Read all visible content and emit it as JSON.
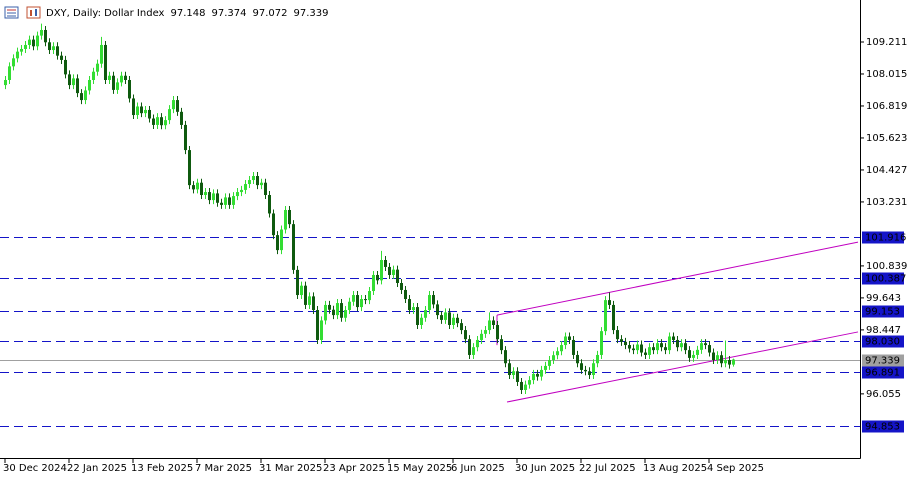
{
  "chart_data": {
    "type": "candlestick",
    "title": "DXY, Daily:  Dollar Index",
    "up_color": "#33dd33",
    "down_color": "#0f5a0f",
    "level_color": "#1414c8",
    "price_color": "#a0a0a0",
    "trend_color": "#c000c0",
    "xlim": [
      -1.25,
      213.75
    ],
    "xticks": [
      {
        "value": 0,
        "label": "30 Dec 2024"
      },
      {
        "value": 16,
        "label": "22 Jan 2025"
      },
      {
        "value": 32,
        "label": "13 Feb 2025"
      },
      {
        "value": 48,
        "label": "7 Mar 2025"
      },
      {
        "value": 64,
        "label": "31 Mar 2025"
      },
      {
        "value": 80,
        "label": "23 Apr 2025"
      },
      {
        "value": 96,
        "label": "15 May 2025"
      },
      {
        "value": 112,
        "label": "6 Jun 2025"
      },
      {
        "value": 128,
        "label": "30 Jun 2025"
      },
      {
        "value": 144,
        "label": "22 Jul 2025"
      },
      {
        "value": 160,
        "label": "13 Aug 2025"
      },
      {
        "value": 176,
        "label": "4 Sep 2025"
      }
    ],
    "ylim": [
      93.657,
      110.781
    ],
    "yticks": [
      109.211,
      108.015,
      106.819,
      105.623,
      104.427,
      103.231,
      100.839,
      99.643,
      98.447,
      96.055
    ],
    "levels": [
      101.916,
      100.387,
      99.153,
      {
        "value": 98.03,
        "label": "98.030"
      },
      96.891,
      94.853
    ],
    "trendlines": [
      {
        "x": [
          123,
          213.25
        ],
        "y": [
          99.0,
          101.73
        ]
      },
      {
        "x": [
          125.5,
          213.25
        ],
        "y": [
          95.75,
          98.37
        ]
      }
    ],
    "open": [
      107.6,
      107.79,
      108.3,
      108.6,
      108.85,
      108.95,
      109.1,
      109.3,
      109.05,
      109.45,
      109.66,
      109.2,
      108.91,
      109.05,
      108.7,
      108.54,
      108.0,
      107.6,
      107.85,
      107.3,
      107.04,
      107.4,
      107.79,
      108.1,
      108.4,
      109.1,
      107.79,
      107.95,
      107.42,
      107.7,
      107.95,
      107.79,
      107.1,
      106.48,
      106.8,
      106.55,
      106.67,
      106.35,
      106.11,
      106.4,
      106.1,
      106.29,
      106.7,
      107.04,
      106.6,
      106.11,
      105.17,
      103.86,
      103.7,
      103.95,
      103.49,
      103.6,
      103.3,
      103.55,
      103.2,
      103.12,
      103.4,
      103.12,
      103.45,
      103.6,
      103.68,
      103.9,
      104.05,
      104.2,
      103.86,
      103.95,
      103.49,
      102.8,
      101.99,
      101.43,
      102.2,
      102.93,
      102.4,
      100.69,
      99.75,
      100.1,
      99.38,
      99.7,
      99.19,
      98.07,
      98.8,
      99.38,
      99.2,
      99.0,
      99.45,
      98.9,
      99.19,
      99.5,
      99.75,
      99.3,
      99.6,
      99.56,
      99.9,
      100.5,
      100.3,
      101.06,
      100.8,
      100.5,
      100.7,
      100.2,
      99.94,
      99.6,
      99.19,
      99.3,
      98.63,
      98.9,
      99.19,
      99.75,
      99.4,
      99.0,
      98.82,
      99.1,
      98.63,
      98.9,
      98.7,
      98.44,
      98.1,
      97.51,
      97.8,
      98.07,
      98.3,
      98.44,
      98.8,
      98.63,
      98.1,
      97.69,
      97.2,
      96.76,
      96.9,
      96.5,
      96.2,
      96.4,
      96.57,
      96.8,
      96.7,
      96.95,
      97.1,
      97.32,
      97.5,
      97.65,
      97.88,
      98.2,
      98.07,
      97.51,
      97.2,
      96.95,
      96.9,
      96.76,
      97.2,
      97.51,
      98.4,
      99.56,
      99.38,
      98.44,
      98.1,
      98.0,
      97.88,
      97.75,
      97.69,
      97.9,
      97.6,
      97.51,
      97.8,
      97.69,
      97.95,
      97.8,
      97.69,
      98.2,
      98.07,
      97.8,
      97.95,
      97.69,
      97.4,
      97.51,
      97.7,
      97.95,
      97.88,
      97.6,
      97.32,
      97.5,
      97.2,
      97.32,
      97.148
    ],
    "high": [
      107.94,
      108.45,
      108.75,
      109.0,
      109.1,
      109.25,
      109.45,
      109.45,
      109.6,
      109.9,
      109.81,
      109.35,
      109.2,
      109.2,
      108.85,
      108.69,
      108.15,
      108.0,
      108.0,
      107.45,
      107.55,
      107.94,
      108.25,
      108.55,
      109.4,
      109.25,
      108.1,
      108.1,
      107.85,
      108.1,
      108.1,
      107.94,
      107.25,
      106.95,
      106.95,
      106.82,
      106.82,
      106.5,
      106.55,
      106.55,
      106.44,
      106.85,
      107.19,
      107.19,
      106.75,
      106.26,
      105.32,
      104.01,
      104.1,
      104.1,
      103.75,
      103.75,
      103.7,
      103.7,
      103.35,
      103.55,
      103.55,
      103.6,
      103.75,
      103.83,
      104.05,
      104.2,
      104.35,
      104.35,
      104.1,
      104.1,
      103.64,
      102.95,
      102.14,
      102.35,
      103.08,
      103.08,
      102.55,
      100.84,
      100.25,
      100.25,
      99.85,
      99.85,
      99.34,
      98.95,
      99.53,
      99.53,
      99.35,
      99.6,
      99.6,
      99.34,
      99.65,
      99.9,
      99.9,
      99.75,
      99.75,
      100.05,
      100.65,
      100.65,
      101.4,
      101.21,
      100.95,
      100.85,
      100.85,
      100.35,
      100.09,
      99.75,
      99.45,
      99.45,
      99.05,
      99.34,
      99.9,
      99.9,
      99.55,
      99.15,
      99.25,
      99.25,
      99.05,
      99.05,
      98.85,
      98.59,
      98.25,
      97.95,
      98.22,
      98.45,
      98.59,
      99.1,
      98.95,
      98.78,
      98.25,
      97.84,
      97.35,
      97.05,
      97.05,
      96.65,
      96.55,
      96.72,
      96.95,
      96.95,
      97.1,
      97.25,
      97.47,
      97.65,
      97.8,
      98.03,
      98.35,
      98.35,
      98.22,
      97.66,
      97.35,
      97.1,
      97.05,
      97.35,
      97.66,
      98.55,
      99.71,
      99.85,
      99.53,
      98.59,
      98.25,
      98.15,
      98.03,
      97.9,
      98.05,
      98.05,
      97.75,
      97.95,
      97.95,
      98.1,
      98.1,
      97.95,
      98.35,
      98.35,
      98.22,
      98.1,
      98.1,
      97.84,
      97.66,
      97.85,
      98.1,
      98.1,
      98.03,
      97.75,
      97.65,
      97.65,
      98.05,
      97.47,
      97.374
    ],
    "low": [
      107.45,
      107.64,
      108.15,
      108.45,
      108.7,
      108.8,
      108.95,
      108.9,
      108.9,
      109.3,
      109.05,
      108.76,
      108.76,
      108.55,
      108.39,
      107.85,
      107.45,
      107.45,
      107.15,
      106.89,
      106.89,
      107.25,
      107.64,
      107.95,
      108.25,
      107.64,
      107.64,
      107.27,
      107.27,
      107.55,
      107.64,
      106.95,
      106.33,
      106.33,
      106.4,
      106.4,
      106.2,
      105.96,
      105.96,
      105.95,
      105.95,
      106.14,
      106.55,
      106.45,
      105.96,
      105.02,
      103.71,
      103.55,
      103.55,
      103.34,
      103.34,
      103.15,
      103.15,
      103.05,
      102.97,
      102.97,
      102.97,
      102.97,
      103.3,
      103.45,
      103.53,
      103.75,
      103.9,
      103.71,
      103.71,
      103.34,
      102.65,
      101.84,
      101.28,
      101.28,
      102.05,
      102.25,
      100.54,
      99.6,
      99.6,
      99.23,
      99.23,
      99.04,
      97.92,
      97.92,
      98.65,
      99.05,
      98.85,
      98.85,
      98.75,
      98.75,
      99.04,
      99.35,
      99.15,
      99.15,
      99.41,
      99.41,
      99.75,
      100.15,
      100.15,
      100.65,
      100.35,
      100.35,
      100.05,
      99.79,
      99.45,
      99.04,
      99.04,
      98.48,
      98.48,
      98.75,
      99.04,
      99.25,
      98.85,
      98.67,
      98.67,
      98.48,
      98.48,
      98.55,
      98.29,
      97.95,
      97.36,
      97.36,
      97.65,
      97.92,
      98.15,
      98.29,
      98.48,
      97.95,
      97.54,
      97.05,
      96.61,
      96.61,
      96.35,
      96.05,
      96.05,
      96.25,
      96.42,
      96.55,
      96.55,
      96.8,
      96.95,
      97.17,
      97.35,
      97.5,
      97.73,
      97.92,
      97.36,
      97.05,
      96.8,
      96.75,
      96.61,
      96.61,
      97.05,
      97.36,
      98.25,
      99.23,
      98.29,
      97.95,
      97.85,
      97.73,
      97.6,
      97.54,
      97.54,
      97.45,
      97.36,
      97.36,
      97.54,
      97.54,
      97.65,
      97.54,
      97.54,
      97.92,
      97.65,
      97.65,
      97.54,
      97.25,
      97.25,
      97.36,
      97.55,
      97.73,
      97.45,
      97.17,
      97.17,
      97.05,
      97.05,
      97.0,
      97.072
    ],
    "close": [
      107.79,
      108.3,
      108.6,
      108.85,
      108.95,
      109.1,
      109.3,
      109.05,
      109.45,
      109.66,
      109.2,
      108.91,
      109.05,
      108.7,
      108.54,
      108.0,
      107.6,
      107.85,
      107.3,
      107.04,
      107.4,
      107.79,
      108.1,
      108.4,
      109.1,
      107.79,
      107.95,
      107.42,
      107.7,
      107.95,
      107.79,
      107.1,
      106.48,
      106.8,
      106.55,
      106.67,
      106.35,
      106.11,
      106.4,
      106.1,
      106.29,
      106.7,
      107.04,
      106.6,
      106.11,
      105.17,
      103.86,
      103.7,
      103.95,
      103.49,
      103.6,
      103.3,
      103.55,
      103.2,
      103.12,
      103.4,
      103.12,
      103.45,
      103.6,
      103.68,
      103.9,
      104.05,
      104.2,
      103.86,
      103.95,
      103.49,
      102.8,
      101.99,
      101.43,
      102.2,
      102.93,
      102.4,
      100.69,
      99.75,
      100.1,
      99.38,
      99.7,
      99.19,
      98.07,
      98.8,
      99.38,
      99.2,
      99.0,
      99.45,
      98.9,
      99.19,
      99.5,
      99.75,
      99.3,
      99.6,
      99.56,
      99.9,
      100.5,
      100.3,
      101.06,
      100.8,
      100.5,
      100.7,
      100.2,
      99.94,
      99.6,
      99.19,
      99.3,
      98.63,
      98.9,
      99.19,
      99.75,
      99.4,
      99.0,
      98.82,
      99.1,
      98.63,
      98.9,
      98.7,
      98.44,
      98.1,
      97.51,
      97.8,
      98.07,
      98.3,
      98.44,
      98.8,
      98.63,
      98.1,
      97.69,
      97.2,
      96.76,
      96.9,
      96.5,
      96.2,
      96.4,
      96.57,
      96.8,
      96.7,
      96.95,
      97.1,
      97.32,
      97.5,
      97.65,
      97.88,
      98.2,
      98.07,
      97.51,
      97.2,
      96.95,
      96.9,
      96.76,
      97.2,
      97.51,
      98.4,
      99.56,
      99.38,
      98.44,
      98.1,
      98.0,
      97.88,
      97.75,
      97.69,
      97.9,
      97.6,
      97.51,
      97.8,
      97.69,
      97.95,
      97.8,
      97.69,
      98.2,
      98.07,
      97.8,
      97.95,
      97.69,
      97.4,
      97.51,
      97.7,
      97.95,
      97.88,
      97.6,
      97.32,
      97.5,
      97.2,
      97.32,
      97.15,
      97.339
    ]
  }
}
